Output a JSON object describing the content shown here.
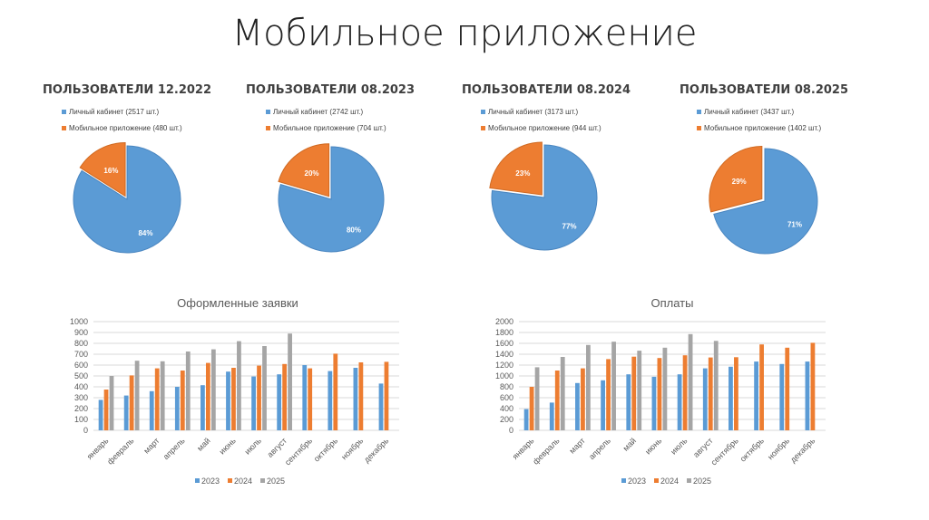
{
  "header": {
    "title": "Мобильное приложение"
  },
  "colors": {
    "s2023": "#5b9bd5",
    "s2024": "#ed7d31",
    "s2025": "#a5a5a5",
    "cabinet": "#5b9bd5",
    "mobile": "#ed7d31"
  },
  "chart_data": [
    {
      "type": "pie",
      "title": "ПОЛЬЗОВАТЕЛИ 12.2022",
      "legend": [
        "Личный кабинет (2517 шт.)",
        "Мобильное приложение (480 шт.)"
      ],
      "values": [
        2517,
        480
      ],
      "labels": [
        "84%",
        "16%"
      ]
    },
    {
      "type": "pie",
      "title": "ПОЛЬЗОВАТЕЛИ 08.2023",
      "legend": [
        "Личный кабинет (2742 шт.)",
        "Мобильное приложение (704 шт.)"
      ],
      "values": [
        2742,
        704
      ],
      "labels": [
        "80%",
        "20%"
      ]
    },
    {
      "type": "pie",
      "title": "ПОЛЬЗОВАТЕЛИ 08.2024",
      "legend": [
        "Личный кабинет (3173 шт.)",
        "Мобильное приложение (944 шт.)"
      ],
      "values": [
        3173,
        944
      ],
      "labels": [
        "77%",
        "23%"
      ]
    },
    {
      "type": "pie",
      "title": "ПОЛЬЗОВАТЕЛИ 08.2025",
      "legend": [
        "Личный кабинет (3437 шт.)",
        "Мобильное приложение (1402 шт.)"
      ],
      "values": [
        3437,
        1402
      ],
      "labels": [
        "71%",
        "29%"
      ]
    },
    {
      "type": "bar",
      "title": "Оформленные заявки",
      "ylim": [
        0,
        1000
      ],
      "ystep": 100,
      "grid": true,
      "legend_position": "bottom",
      "categories": [
        "январь",
        "февраль",
        "март",
        "апрель",
        "май",
        "июнь",
        "июль",
        "август",
        "сентябрь",
        "октябрь",
        "ноябрь",
        "декабрь"
      ],
      "series": [
        {
          "name": "2023",
          "values": [
            280,
            320,
            360,
            400,
            415,
            540,
            495,
            515,
            600,
            545,
            575,
            430
          ]
        },
        {
          "name": "2024",
          "values": [
            375,
            505,
            570,
            550,
            620,
            575,
            595,
            610,
            570,
            705,
            625,
            630
          ]
        },
        {
          "name": "2025",
          "values": [
            500,
            640,
            635,
            725,
            745,
            820,
            775,
            890,
            null,
            null,
            null,
            null
          ]
        }
      ]
    },
    {
      "type": "bar",
      "title": "Оплаты",
      "ylim": [
        0,
        2000
      ],
      "ystep": 200,
      "grid": true,
      "legend_position": "bottom",
      "categories": [
        "январь",
        "февраль",
        "март",
        "апрель",
        "май",
        "июнь",
        "июль",
        "август",
        "сентябрь",
        "октябрь",
        "ноябрь",
        "декабрь"
      ],
      "series": [
        {
          "name": "2023",
          "values": [
            390,
            510,
            870,
            920,
            1030,
            985,
            1030,
            1140,
            1170,
            1265,
            1220,
            1265
          ]
        },
        {
          "name": "2024",
          "values": [
            800,
            1100,
            1140,
            1310,
            1355,
            1330,
            1380,
            1340,
            1345,
            1580,
            1520,
            1610
          ]
        },
        {
          "name": "2025",
          "values": [
            1160,
            1350,
            1570,
            1630,
            1465,
            1520,
            1770,
            1645,
            null,
            null,
            null,
            null
          ]
        }
      ]
    }
  ]
}
